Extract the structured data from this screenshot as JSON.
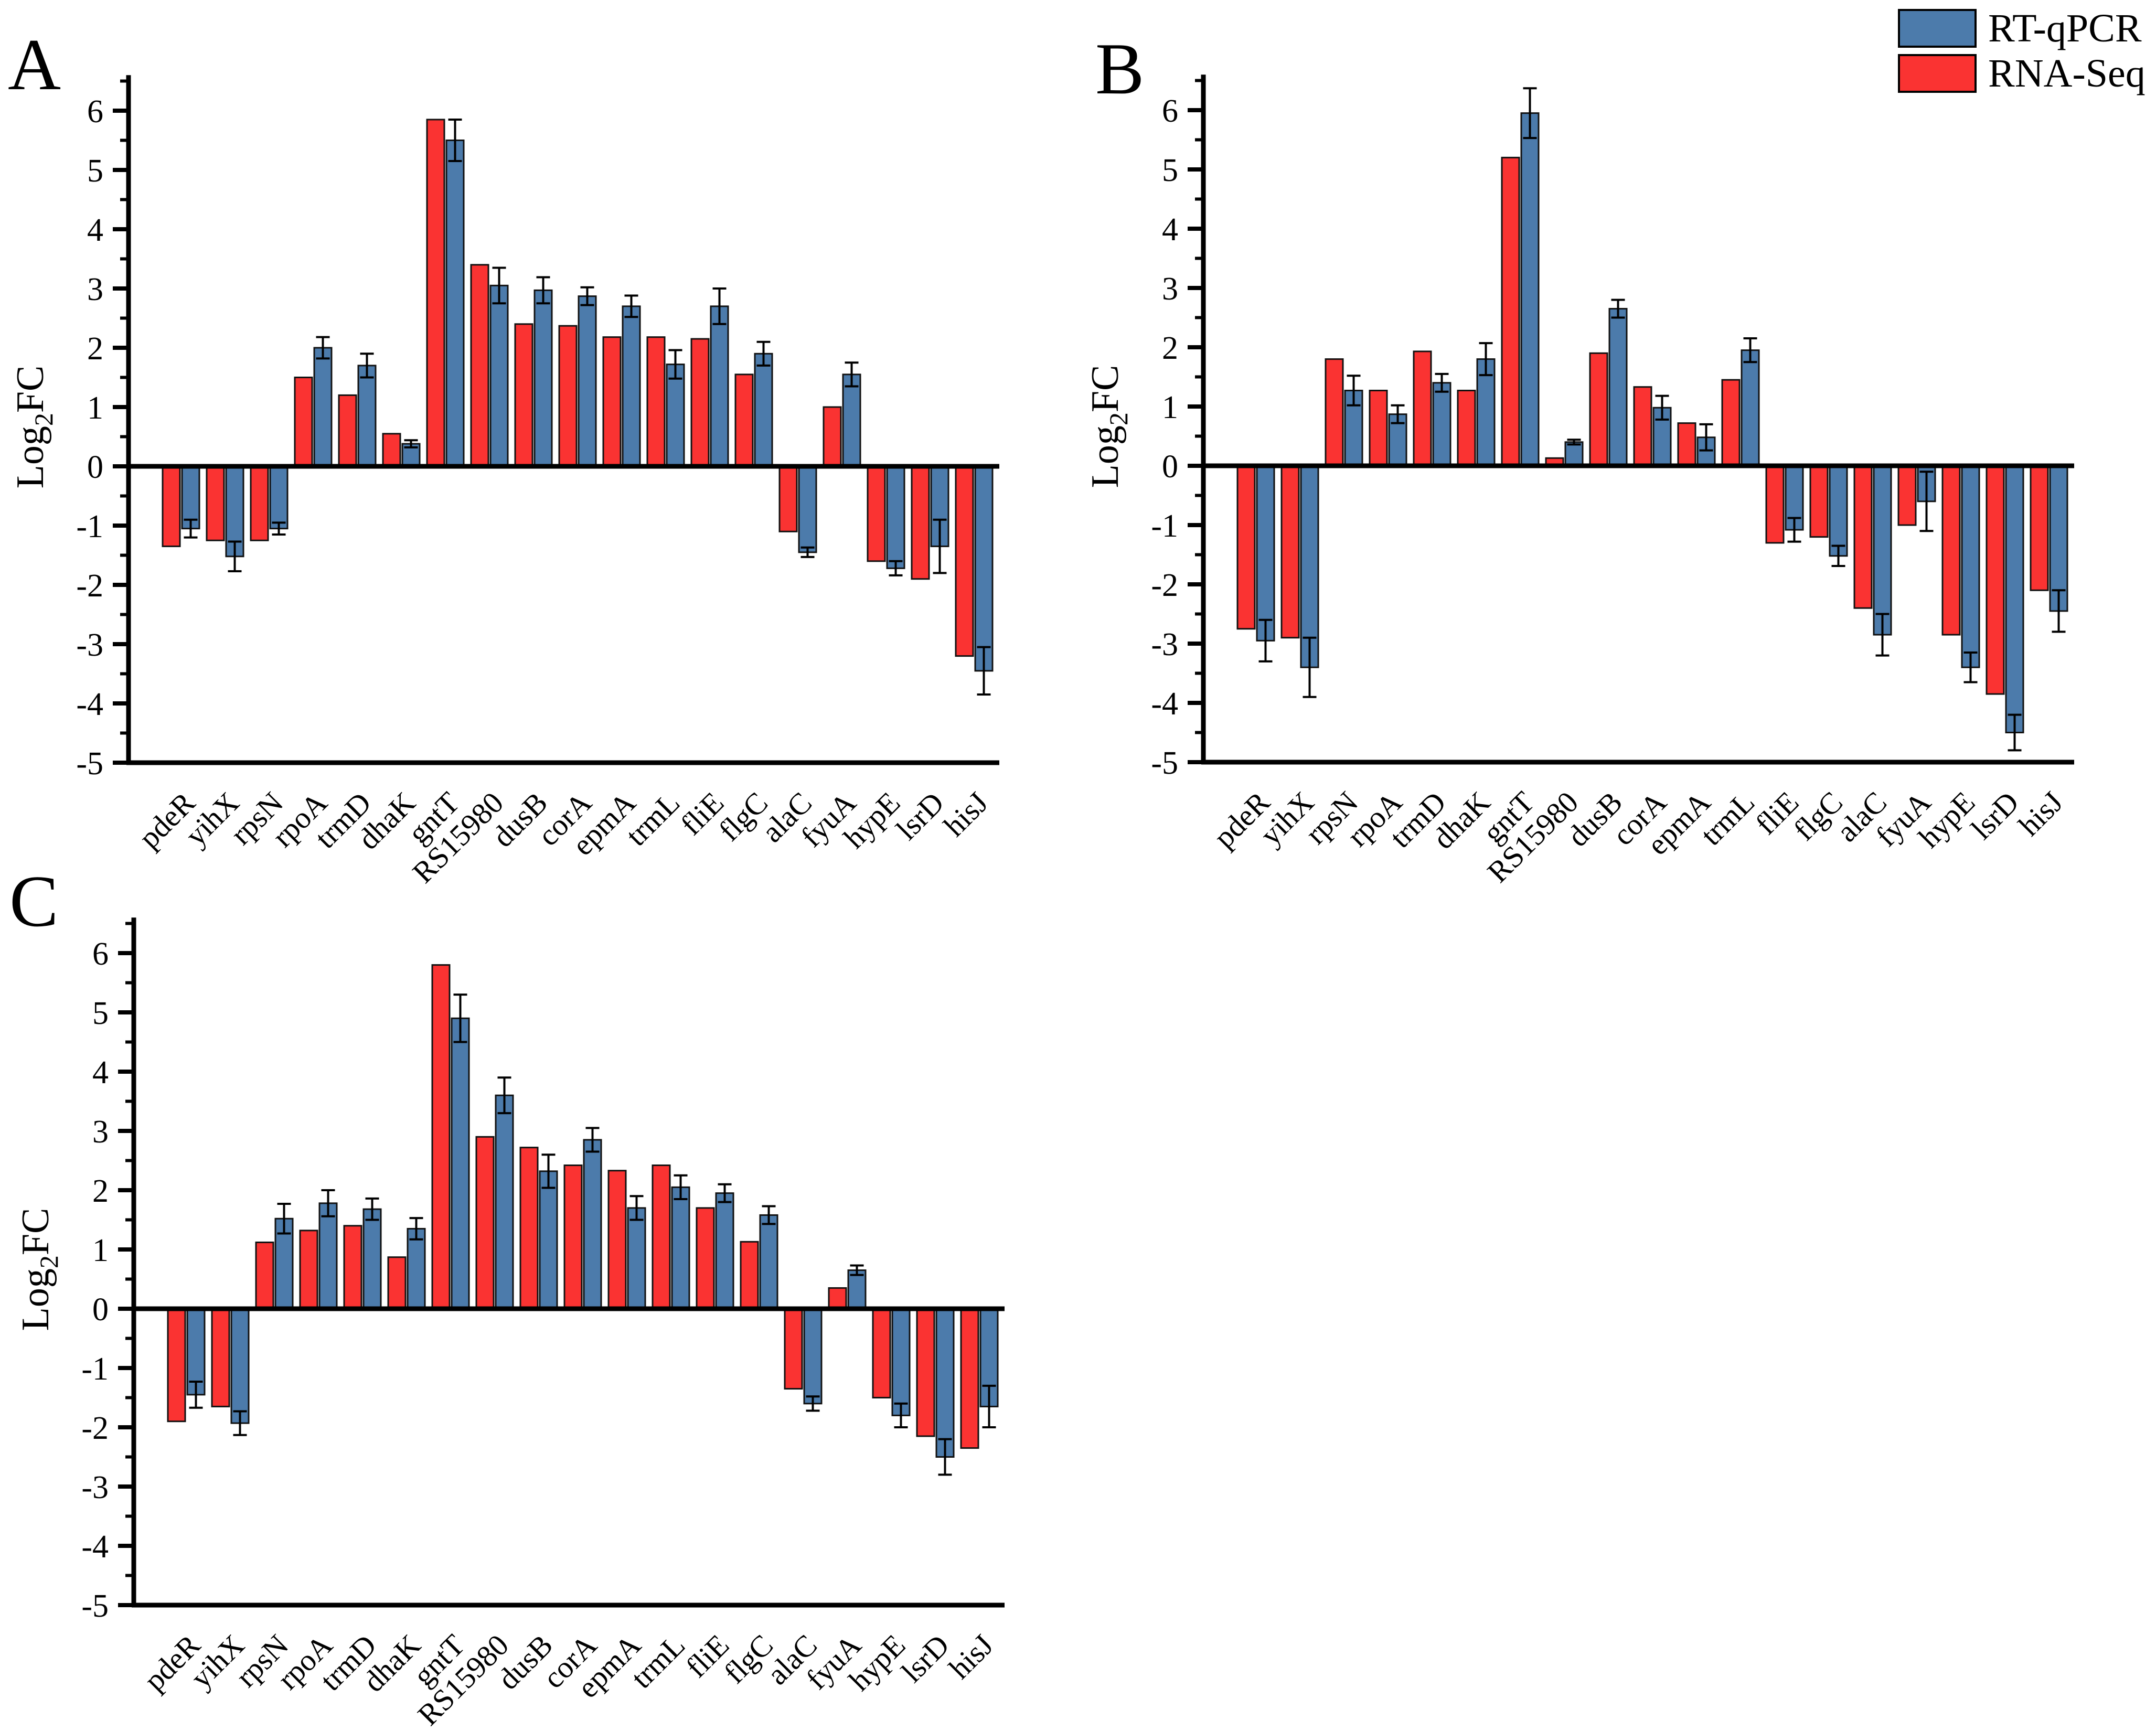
{
  "legend": {
    "items": [
      {
        "label": "RT-qPCR",
        "color": "#4C7BAB"
      },
      {
        "label": "RNA-Seq",
        "color": "#FA3332"
      }
    ]
  },
  "axis": {
    "ylabel_main": "Log",
    "ylabel_sub": "2",
    "ylabel_end": "FC",
    "yticks": [
      -5,
      -4,
      -3,
      -2,
      -1,
      0,
      1,
      2,
      3,
      4,
      5,
      6
    ]
  },
  "chart_data": [
    {
      "type": "bar",
      "panel": "A",
      "title": "",
      "xlabel": "",
      "ylabel": "Log2FC",
      "ylim": [
        -5,
        6
      ],
      "grid": false,
      "legend_position": "top-right",
      "categories": [
        "pdeR",
        "yihX",
        "rpsN",
        "rpoA",
        "trmD",
        "dhaK",
        "gntT",
        "RS15980",
        "dusB",
        "corA",
        "epmA",
        "trmL",
        "fliE",
        "flgC",
        "alaC",
        "fyuA",
        "hypE",
        "lsrD",
        "hisJ"
      ],
      "series": [
        {
          "name": "RNA-Seq",
          "color": "#FA3332",
          "values": [
            -1.35,
            -1.25,
            -1.25,
            1.5,
            1.2,
            0.55,
            5.85,
            3.4,
            2.4,
            2.37,
            2.18,
            2.18,
            2.15,
            1.55,
            -1.1,
            1.0,
            -1.6,
            -1.9,
            -3.2
          ]
        },
        {
          "name": "RT-qPCR",
          "color": "#4C7BAB",
          "values": [
            -1.05,
            -1.52,
            -1.05,
            2.0,
            1.7,
            0.38,
            5.5,
            3.05,
            2.97,
            2.87,
            2.7,
            1.72,
            2.7,
            1.9,
            -1.45,
            1.55,
            -1.72,
            -1.35,
            -3.45
          ],
          "errors": [
            0.15,
            0.25,
            0.1,
            0.18,
            0.2,
            0.06,
            0.35,
            0.3,
            0.22,
            0.15,
            0.18,
            0.24,
            0.3,
            0.2,
            0.08,
            0.2,
            0.12,
            0.45,
            0.4
          ]
        }
      ]
    },
    {
      "type": "bar",
      "panel": "B",
      "title": "",
      "xlabel": "",
      "ylabel": "Log2FC",
      "ylim": [
        -5,
        6
      ],
      "grid": false,
      "legend_position": "top-right",
      "categories": [
        "pdeR",
        "yihX",
        "rpsN",
        "rpoA",
        "trmD",
        "dhaK",
        "gntT",
        "RS15980",
        "dusB",
        "corA",
        "epmA",
        "trmL",
        "fliE",
        "flgC",
        "alaC",
        "fyuA",
        "hypE",
        "lsrD",
        "hisJ"
      ],
      "series": [
        {
          "name": "RNA-Seq",
          "color": "#FA3332",
          "values": [
            -2.75,
            -2.9,
            1.8,
            1.27,
            1.93,
            1.27,
            5.2,
            0.13,
            1.9,
            1.33,
            0.72,
            1.45,
            -1.3,
            -1.2,
            -2.4,
            -1.0,
            -2.85,
            -3.85,
            -2.1
          ]
        },
        {
          "name": "RT-qPCR",
          "color": "#4C7BAB",
          "values": [
            -2.95,
            -3.4,
            1.27,
            0.87,
            1.4,
            1.8,
            5.95,
            0.4,
            2.65,
            0.98,
            0.48,
            1.95,
            -1.08,
            -1.52,
            -2.85,
            -0.6,
            -3.4,
            -4.5,
            -2.45
          ],
          "errors": [
            0.35,
            0.5,
            0.25,
            0.15,
            0.15,
            0.27,
            0.42,
            0.04,
            0.15,
            0.2,
            0.22,
            0.2,
            0.2,
            0.17,
            0.35,
            0.5,
            0.25,
            0.3,
            0.35
          ]
        }
      ]
    },
    {
      "type": "bar",
      "panel": "C",
      "title": "",
      "xlabel": "",
      "ylabel": "Log2FC",
      "ylim": [
        -5,
        6
      ],
      "grid": false,
      "legend_position": "none",
      "categories": [
        "pdeR",
        "yihX",
        "rpsN",
        "rpoA",
        "trmD",
        "dhaK",
        "gntT",
        "RS15980",
        "dusB",
        "corA",
        "epmA",
        "trmL",
        "fliE",
        "flgC",
        "alaC",
        "fyuA",
        "hypE",
        "lsrD",
        "hisJ"
      ],
      "series": [
        {
          "name": "RNA-Seq",
          "color": "#FA3332",
          "values": [
            -1.9,
            -1.65,
            1.12,
            1.32,
            1.4,
            0.87,
            5.8,
            2.9,
            2.72,
            2.42,
            2.33,
            2.42,
            1.7,
            1.13,
            -1.35,
            0.35,
            -1.5,
            -2.15,
            -2.35
          ]
        },
        {
          "name": "RT-qPCR",
          "color": "#4C7BAB",
          "values": [
            -1.45,
            -1.93,
            1.52,
            1.78,
            1.68,
            1.35,
            4.9,
            3.6,
            2.32,
            2.85,
            1.7,
            2.05,
            1.95,
            1.58,
            -1.6,
            0.65,
            -1.8,
            -2.5,
            -1.65
          ],
          "errors": [
            0.22,
            0.2,
            0.25,
            0.22,
            0.18,
            0.18,
            0.4,
            0.3,
            0.28,
            0.2,
            0.2,
            0.2,
            0.15,
            0.15,
            0.12,
            0.08,
            0.2,
            0.3,
            0.35
          ]
        }
      ]
    }
  ]
}
